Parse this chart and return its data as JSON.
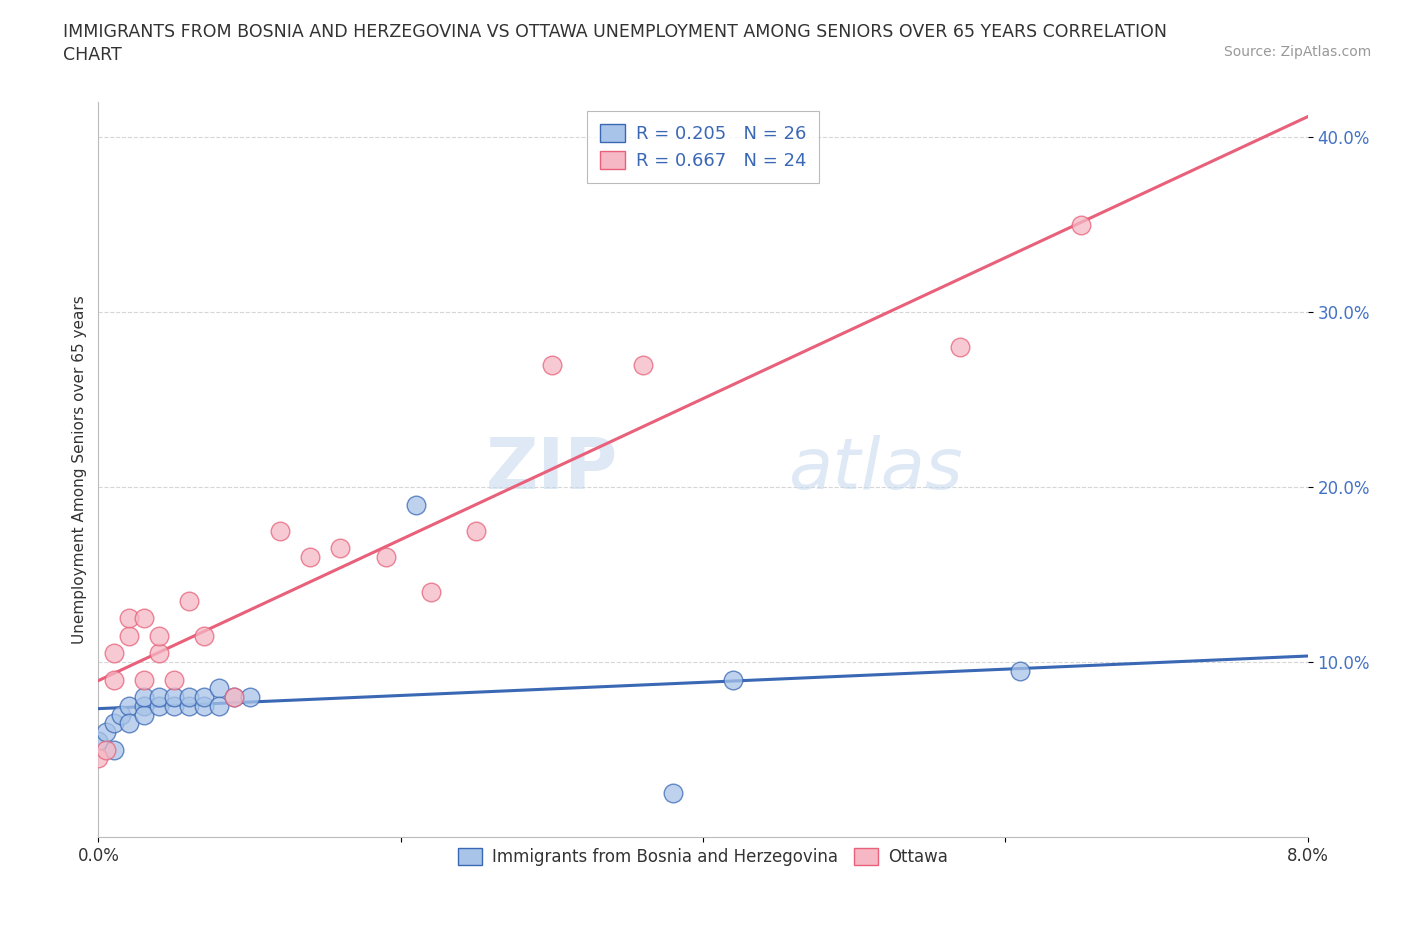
{
  "title_line1": "IMMIGRANTS FROM BOSNIA AND HERZEGOVINA VS OTTAWA UNEMPLOYMENT AMONG SENIORS OVER 65 YEARS CORRELATION",
  "title_line2": "CHART",
  "source": "Source: ZipAtlas.com",
  "ylabel": "Unemployment Among Seniors over 65 years",
  "xmin": 0.0,
  "xmax": 0.08,
  "ymin": 0.0,
  "ymax": 0.42,
  "xticks": [
    0.0,
    0.02,
    0.04,
    0.06,
    0.08
  ],
  "xtick_labels": [
    "0.0%",
    "",
    "",
    "",
    "8.0%"
  ],
  "ytick_positions": [
    0.1,
    0.2,
    0.3,
    0.4
  ],
  "ytick_labels": [
    "10.0%",
    "20.0%",
    "30.0%",
    "40.0%"
  ],
  "R_blue": 0.205,
  "N_blue": 26,
  "R_pink": 0.667,
  "N_pink": 24,
  "blue_color": "#a8c4e8",
  "pink_color": "#f5b8c4",
  "blue_line_color": "#3a68b5",
  "pink_line_color": "#e8607a",
  "watermark_zip": "ZIP",
  "watermark_atlas": "atlas",
  "legend_label_blue": "Immigrants from Bosnia and Herzegovina",
  "legend_label_pink": "Ottawa",
  "blue_scatter_x": [
    0.0,
    0.0005,
    0.001,
    0.001,
    0.0015,
    0.002,
    0.002,
    0.003,
    0.003,
    0.003,
    0.004,
    0.004,
    0.005,
    0.005,
    0.006,
    0.006,
    0.007,
    0.007,
    0.008,
    0.008,
    0.009,
    0.01,
    0.021,
    0.038,
    0.042,
    0.061
  ],
  "blue_scatter_y": [
    0.055,
    0.06,
    0.05,
    0.065,
    0.07,
    0.075,
    0.065,
    0.075,
    0.07,
    0.08,
    0.075,
    0.08,
    0.075,
    0.08,
    0.075,
    0.08,
    0.075,
    0.08,
    0.085,
    0.075,
    0.08,
    0.08,
    0.19,
    0.025,
    0.09,
    0.095
  ],
  "pink_scatter_x": [
    0.0,
    0.0005,
    0.001,
    0.001,
    0.002,
    0.002,
    0.003,
    0.003,
    0.004,
    0.004,
    0.005,
    0.006,
    0.007,
    0.009,
    0.012,
    0.014,
    0.016,
    0.019,
    0.022,
    0.025,
    0.03,
    0.036,
    0.057,
    0.065
  ],
  "pink_scatter_y": [
    0.045,
    0.05,
    0.105,
    0.09,
    0.115,
    0.125,
    0.09,
    0.125,
    0.105,
    0.115,
    0.09,
    0.135,
    0.115,
    0.08,
    0.175,
    0.16,
    0.165,
    0.16,
    0.14,
    0.175,
    0.27,
    0.27,
    0.28,
    0.35
  ],
  "background_color": "#ffffff",
  "grid_color": "#cccccc",
  "tick_color": "#4472c4"
}
